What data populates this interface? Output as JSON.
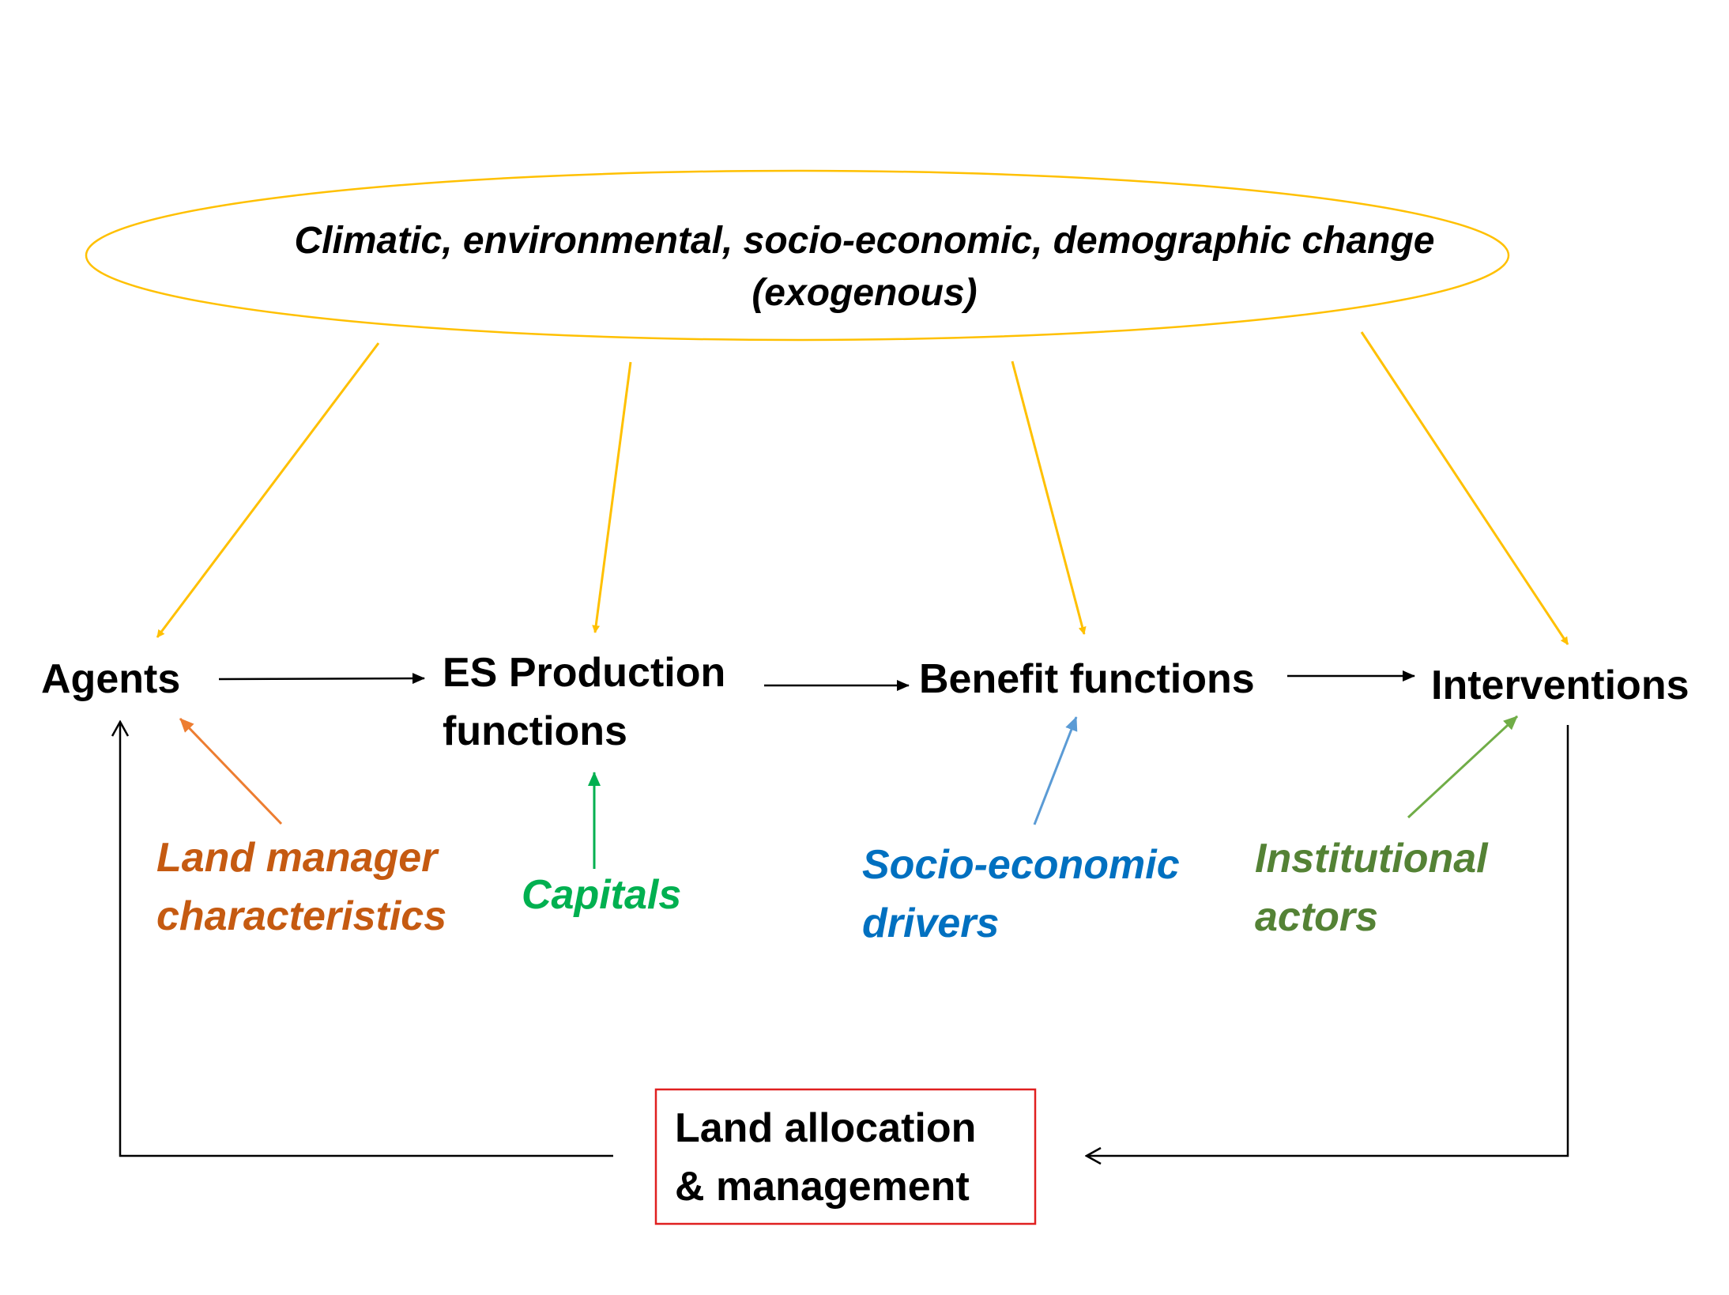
{
  "colors": {
    "exogenous": "#ffc000",
    "flow": "#000000",
    "land_manager": "#c55a11",
    "land_manager_arrow": "#ed7d31",
    "capitals": "#00b050",
    "socio_economic": "#0070c0",
    "socio_economic_arrow": "#5b9bd5",
    "institutional": "#548235",
    "institutional_arrow": "#70ad47",
    "land_box_border": "#e02020"
  },
  "exogenous": {
    "line1": "Climatic, environmental, socio-economic, demographic change",
    "line2": "(exogenous)"
  },
  "nodes": {
    "agents": "Agents",
    "es_production_line1": "ES Production",
    "es_production_line2": "functions",
    "benefit_functions": "Benefit functions",
    "interventions": "Interventions",
    "land_allocation_line1": "Land allocation",
    "land_allocation_line2": "& management"
  },
  "drivers": {
    "land_manager_line1": "Land manager",
    "land_manager_line2": "characteristics",
    "capitals": "Capitals",
    "socio_economic_line1": "Socio-economic",
    "socio_economic_line2": "drivers",
    "institutional_line1": "Institutional",
    "institutional_line2": "actors"
  }
}
